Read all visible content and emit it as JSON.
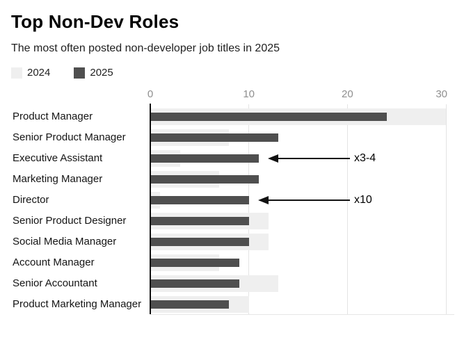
{
  "header": {
    "title": "Top Non-Dev Roles",
    "subtitle": "The most often posted non-developer job titles in 2025"
  },
  "legend": {
    "items": [
      {
        "label": "2024",
        "color": "#efefef"
      },
      {
        "label": "2025",
        "color": "#4f4f4f"
      }
    ]
  },
  "chart_data": {
    "type": "bar",
    "orientation": "horizontal",
    "title": "Top Non-Dev Roles",
    "subtitle": "The most often posted non-developer job titles in 2025",
    "grid": true,
    "legend_position": "top-left",
    "categories": [
      "Product Manager",
      "Senior Product Manager",
      "Executive Assistant",
      "Marketing Manager",
      "Director",
      "Senior Product Designer",
      "Social Media Manager",
      "Account Manager",
      "Senior Accountant",
      "Product Marketing Manager"
    ],
    "series": [
      {
        "name": "2024",
        "color": "#efefef",
        "values": [
          30,
          8,
          3,
          7,
          1,
          12,
          12,
          7,
          13,
          10
        ]
      },
      {
        "name": "2025",
        "color": "#4f4f4f",
        "values": [
          24,
          13,
          11,
          11,
          10,
          10,
          10,
          9,
          9,
          8
        ]
      }
    ],
    "x_axis": {
      "ticks": [
        0,
        10,
        20,
        30
      ],
      "max": 30
    },
    "annotations": [
      {
        "text": "x3-4",
        "category": "Executive Assistant",
        "series": "2025"
      },
      {
        "text": "x10",
        "category": "Director",
        "series": "2025"
      }
    ]
  }
}
